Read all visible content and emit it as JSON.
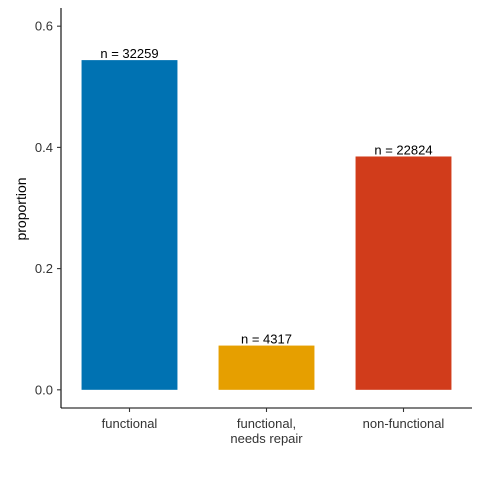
{
  "chart_data": {
    "type": "bar",
    "categories": [
      [
        "functional"
      ],
      [
        "functional,",
        "needs repair"
      ],
      [
        "non-functional"
      ]
    ],
    "values": [
      0.544,
      0.073,
      0.385
    ],
    "data_labels": [
      "n =  32259",
      "n =  4317",
      "n =  22824"
    ],
    "colors": [
      "#0072B2",
      "#E69F00",
      "#D13C1B"
    ],
    "title": "",
    "xlabel": "",
    "ylabel": "proportion",
    "ylim": [
      -0.03,
      0.63
    ],
    "yticks": [
      0.0,
      0.2,
      0.4,
      0.6
    ],
    "ytick_labels": [
      "0.0",
      "0.2",
      "0.4",
      "0.6"
    ],
    "grid": false,
    "legend": "none"
  }
}
